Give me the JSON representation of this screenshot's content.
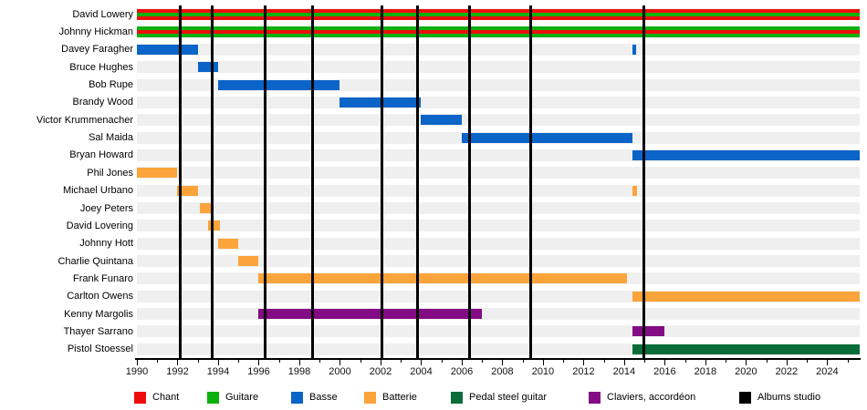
{
  "chart_data": {
    "type": "timeline-gantt",
    "title": "",
    "x_axis": {
      "min": 1990,
      "max": 2025.6,
      "labeled_tick_step": 2,
      "minor_tick_step": 1,
      "tick_labels": [
        "1990",
        "1992",
        "1994",
        "1996",
        "1998",
        "2000",
        "2002",
        "2004",
        "2006",
        "2008",
        "2010",
        "2012",
        "2014",
        "2016",
        "2018",
        "2020",
        "2022",
        "2024"
      ]
    },
    "colors": {
      "chant": "#ee0d0d",
      "guitare": "#0db10d",
      "basse": "#0b64c8",
      "batterie": "#faa43b",
      "pedal_steel": "#086d38",
      "claviers": "#830b83",
      "albums": "#000000",
      "row_band": "#efefef"
    },
    "album_lines_years": [
      1992.15,
      1993.7,
      1996.3,
      1998.65,
      2002.05,
      2003.8,
      2006.4,
      2009.4,
      2014.95
    ],
    "members": [
      {
        "name": "David Lowery",
        "segments": [
          {
            "start": 1990,
            "end": 2025.6,
            "stripes": [
              "chant",
              "guitare",
              "chant"
            ]
          }
        ]
      },
      {
        "name": "Johnny Hickman",
        "segments": [
          {
            "start": 1990,
            "end": 2025.6,
            "stripes": [
              "guitare",
              "chant",
              "guitare"
            ]
          }
        ]
      },
      {
        "name": "Davey Faragher",
        "segments": [
          {
            "start": 1990,
            "end": 1993,
            "instrument": "basse"
          },
          {
            "start": 2014.4,
            "end": 2014.6,
            "instrument": "basse"
          }
        ]
      },
      {
        "name": "Bruce Hughes",
        "segments": [
          {
            "start": 1993,
            "end": 1994,
            "instrument": "basse"
          }
        ]
      },
      {
        "name": "Bob Rupe",
        "segments": [
          {
            "start": 1994,
            "end": 2000,
            "instrument": "basse"
          }
        ]
      },
      {
        "name": "Brandy Wood",
        "segments": [
          {
            "start": 2000,
            "end": 2004,
            "instrument": "basse"
          }
        ]
      },
      {
        "name": "Victor Krummenacher",
        "segments": [
          {
            "start": 2004,
            "end": 2006,
            "instrument": "basse"
          }
        ]
      },
      {
        "name": "Sal Maida",
        "segments": [
          {
            "start": 2006,
            "end": 2014.4,
            "instrument": "basse"
          }
        ]
      },
      {
        "name": "Bryan Howard",
        "segments": [
          {
            "start": 2014.4,
            "end": 2025.6,
            "instrument": "basse"
          }
        ]
      },
      {
        "name": "Phil Jones",
        "segments": [
          {
            "start": 1990,
            "end": 1992,
            "instrument": "batterie"
          }
        ]
      },
      {
        "name": "Michael Urbano",
        "segments": [
          {
            "start": 1992,
            "end": 1993,
            "instrument": "batterie"
          },
          {
            "start": 2014.4,
            "end": 2014.65,
            "instrument": "batterie"
          }
        ]
      },
      {
        "name": "Joey Peters",
        "segments": [
          {
            "start": 1993.1,
            "end": 1993.7,
            "instrument": "batterie"
          }
        ]
      },
      {
        "name": "David Lovering",
        "segments": [
          {
            "start": 1993.5,
            "end": 1994.1,
            "instrument": "batterie"
          }
        ]
      },
      {
        "name": "Johnny Hott",
        "segments": [
          {
            "start": 1994,
            "end": 1995,
            "instrument": "batterie"
          }
        ]
      },
      {
        "name": "Charlie Quintana",
        "segments": [
          {
            "start": 1995,
            "end": 1996,
            "instrument": "batterie"
          }
        ]
      },
      {
        "name": "Frank Funaro",
        "segments": [
          {
            "start": 1996,
            "end": 2014.15,
            "instrument": "batterie"
          }
        ]
      },
      {
        "name": "Carlton Owens",
        "segments": [
          {
            "start": 2014.4,
            "end": 2025.6,
            "instrument": "batterie"
          }
        ]
      },
      {
        "name": "Kenny Margolis",
        "segments": [
          {
            "start": 1996,
            "end": 2007,
            "instrument": "claviers"
          }
        ]
      },
      {
        "name": "Thayer Sarrano",
        "segments": [
          {
            "start": 2014.4,
            "end": 2016,
            "instrument": "claviers"
          }
        ]
      },
      {
        "name": "Pistol Stoessel",
        "segments": [
          {
            "start": 2014.4,
            "end": 2025.6,
            "instrument": "pedal_steel"
          }
        ]
      }
    ],
    "legend": [
      {
        "label": "Chant",
        "color_key": "chant"
      },
      {
        "label": "Guitare",
        "color_key": "guitare"
      },
      {
        "label": "Basse",
        "color_key": "basse"
      },
      {
        "label": "Batterie",
        "color_key": "batterie"
      },
      {
        "label": "Pedal steel guitar",
        "color_key": "pedal_steel"
      },
      {
        "label": "Claviers, accordéon",
        "color_key": "claviers"
      },
      {
        "label": "Albums studio",
        "color_key": "albums"
      }
    ],
    "legend_position": "bottom",
    "grid": "album-release-vertical-lines"
  }
}
